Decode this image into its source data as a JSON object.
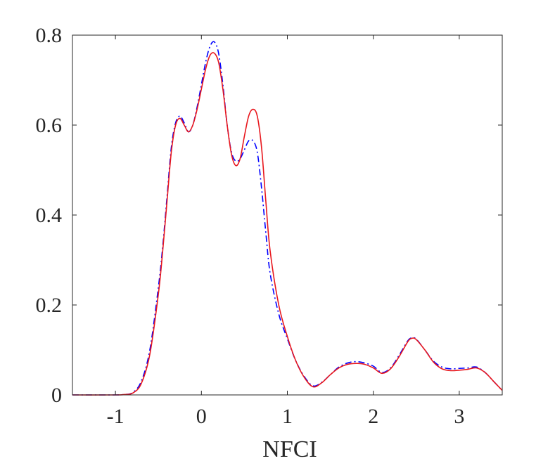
{
  "chart_data": {
    "type": "line",
    "title": "",
    "xlabel": "NFCI",
    "ylabel": "",
    "xlim": [
      -1.5,
      3.5
    ],
    "ylim": [
      0,
      0.8
    ],
    "xticks": [
      -1,
      0,
      1,
      2,
      3
    ],
    "yticks": [
      0,
      0.2,
      0.4,
      0.6,
      0.8
    ],
    "xtick_labels": [
      "-1",
      "0",
      "1",
      "2",
      "3"
    ],
    "ytick_labels": [
      "0",
      "0.2",
      "0.4",
      "0.6",
      "0.8"
    ],
    "grid": false,
    "box": true,
    "series": [
      {
        "color": "#0000ff",
        "style": "dashdot",
        "x": [
          -1.5,
          -1.0,
          -0.9,
          -0.8,
          -0.7,
          -0.6,
          -0.5,
          -0.45,
          -0.4,
          -0.35,
          -0.3,
          -0.25,
          -0.2,
          -0.15,
          -0.1,
          -0.05,
          0.0,
          0.05,
          0.1,
          0.15,
          0.2,
          0.25,
          0.3,
          0.35,
          0.4,
          0.45,
          0.5,
          0.55,
          0.6,
          0.65,
          0.7,
          0.75,
          0.8,
          0.9,
          1.0,
          1.1,
          1.2,
          1.3,
          1.4,
          1.5,
          1.6,
          1.7,
          1.8,
          1.9,
          2.0,
          2.1,
          2.2,
          2.3,
          2.4,
          2.45,
          2.5,
          2.6,
          2.7,
          2.8,
          2.9,
          3.0,
          3.1,
          3.2,
          3.3,
          3.4,
          3.5
        ],
        "y": [
          0.0,
          0.0,
          0.001,
          0.005,
          0.03,
          0.1,
          0.24,
          0.33,
          0.44,
          0.55,
          0.605,
          0.62,
          0.605,
          0.585,
          0.6,
          0.64,
          0.69,
          0.74,
          0.775,
          0.785,
          0.76,
          0.69,
          0.6,
          0.54,
          0.52,
          0.525,
          0.545,
          0.565,
          0.565,
          0.54,
          0.46,
          0.36,
          0.27,
          0.18,
          0.125,
          0.075,
          0.04,
          0.02,
          0.028,
          0.045,
          0.062,
          0.071,
          0.074,
          0.071,
          0.064,
          0.05,
          0.06,
          0.088,
          0.12,
          0.127,
          0.124,
          0.1,
          0.075,
          0.062,
          0.058,
          0.059,
          0.06,
          0.062,
          0.05,
          0.03,
          0.01
        ]
      },
      {
        "color": "#e8171d",
        "style": "solid",
        "x": [
          -1.5,
          -1.0,
          -0.9,
          -0.8,
          -0.7,
          -0.6,
          -0.5,
          -0.45,
          -0.4,
          -0.35,
          -0.3,
          -0.25,
          -0.2,
          -0.15,
          -0.1,
          -0.05,
          0.0,
          0.05,
          0.1,
          0.15,
          0.2,
          0.25,
          0.3,
          0.35,
          0.4,
          0.45,
          0.5,
          0.55,
          0.6,
          0.65,
          0.7,
          0.75,
          0.8,
          0.9,
          1.0,
          1.1,
          1.2,
          1.3,
          1.4,
          1.5,
          1.6,
          1.7,
          1.8,
          1.9,
          2.0,
          2.1,
          2.2,
          2.3,
          2.4,
          2.45,
          2.5,
          2.6,
          2.7,
          2.8,
          2.9,
          3.0,
          3.1,
          3.2,
          3.3,
          3.4,
          3.5
        ],
        "y": [
          0.0,
          0.0,
          0.001,
          0.004,
          0.025,
          0.09,
          0.225,
          0.32,
          0.43,
          0.54,
          0.6,
          0.615,
          0.6,
          0.585,
          0.6,
          0.635,
          0.68,
          0.725,
          0.755,
          0.76,
          0.74,
          0.68,
          0.6,
          0.535,
          0.51,
          0.525,
          0.575,
          0.62,
          0.635,
          0.62,
          0.55,
          0.43,
          0.32,
          0.2,
          0.13,
          0.075,
          0.038,
          0.018,
          0.027,
          0.045,
          0.06,
          0.068,
          0.07,
          0.068,
          0.06,
          0.048,
          0.058,
          0.085,
          0.118,
          0.126,
          0.123,
          0.1,
          0.073,
          0.058,
          0.054,
          0.055,
          0.057,
          0.06,
          0.05,
          0.03,
          0.01
        ]
      }
    ]
  }
}
